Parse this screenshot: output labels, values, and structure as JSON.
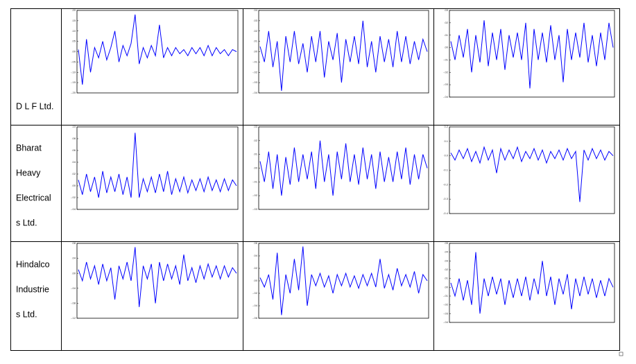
{
  "table": {
    "rows": [
      {
        "label_lines": [
          "D L F Ltd."
        ],
        "charts": [
          {
            "type": "line",
            "color": "#0000ff",
            "ylim": [
              -0.2,
              0.2
            ],
            "yticks": [
              {
                "value": 0.2,
                "label": ".20"
              },
              {
                "value": 0.15,
                "label": ".15"
              },
              {
                "value": 0.1,
                "label": ".10"
              },
              {
                "value": 0.05,
                "label": ".05"
              },
              {
                "value": 0,
                "label": ".00"
              },
              {
                "value": -0.05,
                "label": "-.05"
              },
              {
                "value": -0.1,
                "label": "-.10"
              },
              {
                "value": -0.15,
                "label": "-.15"
              },
              {
                "value": -0.2,
                "label": "-.20"
              }
            ],
            "values": [
              0.01,
              -0.16,
              0.06,
              -0.1,
              0.02,
              -0.03,
              0.05,
              -0.04,
              0.02,
              0.1,
              -0.05,
              0.03,
              -0.02,
              0.04,
              0.18,
              -0.06,
              0.02,
              -0.03,
              0.03,
              -0.02,
              0.13,
              -0.03,
              0.02,
              -0.02,
              0.02,
              -0.01,
              0.01,
              -0.02,
              0.02,
              -0.01,
              0.02,
              -0.02,
              0.03,
              -0.02,
              0.02,
              -0.01,
              0.01,
              -0.02,
              0.01,
              0.0
            ]
          },
          {
            "type": "line",
            "color": "#0000ff",
            "ylim": [
              -0.04,
              0.04
            ],
            "yticks": [
              {
                "value": 0.04,
                "label": ".04"
              },
              {
                "value": 0.03,
                "label": ".03"
              },
              {
                "value": 0.02,
                "label": ".02"
              },
              {
                "value": 0.01,
                "label": ".01"
              },
              {
                "value": 0,
                "label": ".00"
              },
              {
                "value": -0.01,
                "label": "-.01"
              },
              {
                "value": -0.02,
                "label": "-.02"
              },
              {
                "value": -0.03,
                "label": "-.03"
              },
              {
                "value": -0.04,
                "label": "-.04"
              }
            ],
            "values": [
              0.005,
              -0.01,
              0.02,
              -0.015,
              0.01,
              -0.038,
              0.015,
              -0.01,
              0.02,
              -0.012,
              0.008,
              -0.02,
              0.015,
              -0.01,
              0.02,
              -0.025,
              0.01,
              -0.008,
              0.018,
              -0.03,
              0.012,
              -0.01,
              0.015,
              -0.012,
              0.03,
              -0.015,
              0.01,
              -0.02,
              0.015,
              -0.01,
              0.012,
              -0.015,
              0.02,
              -0.01,
              0.015,
              -0.012,
              0.01,
              -0.008,
              0.012,
              0.0
            ]
          },
          {
            "type": "line",
            "color": "#0000ff",
            "ylim": [
              -0.04,
              0.03
            ],
            "yticks": [
              {
                "value": 0.03,
                "label": ".03"
              },
              {
                "value": 0.02,
                "label": ".02"
              },
              {
                "value": 0.01,
                "label": ".01"
              },
              {
                "value": 0,
                "label": ".00"
              },
              {
                "value": -0.01,
                "label": "-.01"
              },
              {
                "value": -0.02,
                "label": "-.02"
              },
              {
                "value": -0.03,
                "label": "-.03"
              },
              {
                "value": -0.04,
                "label": "-.04"
              }
            ],
            "values": [
              0.005,
              -0.01,
              0.01,
              -0.008,
              0.015,
              -0.02,
              0.01,
              -0.012,
              0.022,
              -0.015,
              0.012,
              -0.01,
              0.015,
              -0.018,
              0.01,
              -0.008,
              0.012,
              -0.01,
              0.02,
              -0.033,
              0.015,
              -0.01,
              0.012,
              -0.012,
              0.018,
              -0.01,
              0.01,
              -0.028,
              0.015,
              -0.01,
              0.012,
              -0.008,
              0.02,
              -0.012,
              0.01,
              -0.015,
              0.012,
              -0.01,
              0.02,
              0.0
            ]
          }
        ]
      },
      {
        "label_lines": [
          "Bharat",
          "Heavy",
          "Electrical",
          "s Ltd."
        ],
        "charts": [
          {
            "type": "line",
            "color": "#0000ff",
            "ylim": [
              -0.04,
              0.1
            ],
            "yticks": [
              {
                "value": 0.1,
                "label": ".10"
              },
              {
                "value": 0.08,
                "label": ".08"
              },
              {
                "value": 0.06,
                "label": ".06"
              },
              {
                "value": 0.04,
                "label": ".04"
              },
              {
                "value": 0.02,
                "label": ".02"
              },
              {
                "value": 0,
                "label": ".00"
              },
              {
                "value": -0.02,
                "label": "-.02"
              },
              {
                "value": -0.04,
                "label": "-.04"
              }
            ],
            "values": [
              0.01,
              -0.015,
              0.02,
              -0.01,
              0.015,
              -0.02,
              0.025,
              -0.012,
              0.015,
              -0.01,
              0.02,
              -0.015,
              0.015,
              -0.02,
              0.09,
              -0.02,
              0.012,
              -0.01,
              0.015,
              -0.012,
              0.02,
              -0.01,
              0.025,
              -0.015,
              0.012,
              -0.01,
              0.015,
              -0.012,
              0.01,
              -0.008,
              0.012,
              -0.01,
              0.015,
              -0.008,
              0.01,
              -0.01,
              0.012,
              -0.008,
              0.01,
              0.0
            ]
          },
          {
            "type": "line",
            "color": "#0000ff",
            "ylim": [
              -0.03,
              0.03
            ],
            "yticks": [
              {
                "value": 0.03,
                "label": ".03"
              },
              {
                "value": 0.02,
                "label": ".02"
              },
              {
                "value": 0.01,
                "label": ".01"
              },
              {
                "value": 0,
                "label": ".00"
              },
              {
                "value": -0.01,
                "label": "-.01"
              },
              {
                "value": -0.02,
                "label": "-.02"
              },
              {
                "value": -0.03,
                "label": "-.03"
              }
            ],
            "values": [
              0.005,
              -0.01,
              0.012,
              -0.015,
              0.01,
              -0.02,
              0.008,
              -0.012,
              0.015,
              -0.01,
              0.01,
              -0.008,
              0.012,
              -0.015,
              0.02,
              -0.01,
              0.01,
              -0.02,
              0.012,
              -0.008,
              0.018,
              -0.01,
              0.01,
              -0.012,
              0.015,
              -0.008,
              0.01,
              -0.015,
              0.012,
              -0.01,
              0.008,
              -0.01,
              0.012,
              -0.008,
              0.015,
              -0.012,
              0.01,
              -0.008,
              0.01,
              0.0
            ]
          },
          {
            "type": "line",
            "color": "#0000ff",
            "ylim": [
              -0.4,
              0.2
            ],
            "yticks": [
              0.2,
              0.1,
              {
                "value": 0,
                "label": "0.0"
              },
              -0.1,
              -0.2,
              -0.3,
              -0.4
            ],
            "values": [
              0.02,
              -0.03,
              0.04,
              -0.02,
              0.05,
              -0.04,
              0.03,
              -0.05,
              0.06,
              -0.03,
              0.04,
              -0.12,
              0.05,
              -0.03,
              0.04,
              -0.02,
              0.06,
              -0.04,
              0.03,
              -0.02,
              0.05,
              -0.03,
              0.04,
              -0.05,
              0.03,
              -0.02,
              0.04,
              -0.03,
              0.05,
              -0.02,
              0.03,
              -0.32,
              0.04,
              -0.03,
              0.05,
              -0.02,
              0.04,
              -0.03,
              0.03,
              0.0
            ]
          }
        ]
      },
      {
        "label_lines": [
          "Hindalco",
          "Industrie",
          "s Ltd."
        ],
        "charts": [
          {
            "type": "line",
            "color": "#0000ff",
            "ylim": [
              -0.12,
              0.08
            ],
            "yticks": [
              {
                "value": 0.08,
                "label": ".08"
              },
              {
                "value": 0.04,
                "label": ".04"
              },
              {
                "value": 0,
                "label": ".00"
              },
              {
                "value": -0.04,
                "label": "-.04"
              },
              {
                "value": -0.08,
                "label": "-.08"
              },
              {
                "value": -0.12,
                "label": "-.12"
              }
            ],
            "values": [
              0.01,
              -0.02,
              0.03,
              -0.015,
              0.02,
              -0.03,
              0.025,
              -0.02,
              0.015,
              -0.07,
              0.02,
              -0.015,
              0.03,
              -0.02,
              0.07,
              -0.09,
              0.02,
              -0.015,
              0.025,
              -0.08,
              0.03,
              -0.02,
              0.025,
              -0.015,
              0.02,
              -0.03,
              0.05,
              -0.02,
              0.015,
              -0.025,
              0.02,
              -0.015,
              0.025,
              -0.01,
              0.02,
              -0.015,
              0.02,
              -0.01,
              0.015,
              0.0
            ]
          },
          {
            "type": "line",
            "color": "#0000ff",
            "ylim": [
              -0.06,
              0.06
            ],
            "yticks": [
              {
                "value": 0.06,
                "label": ".06"
              },
              {
                "value": 0.04,
                "label": ".04"
              },
              {
                "value": 0.02,
                "label": ".02"
              },
              {
                "value": 0,
                "label": ".00"
              },
              {
                "value": -0.02,
                "label": "-.02"
              },
              {
                "value": -0.04,
                "label": "-.04"
              },
              {
                "value": -0.06,
                "label": "-.06"
              }
            ],
            "values": [
              0.005,
              -0.01,
              0.01,
              -0.03,
              0.045,
              -0.055,
              0.01,
              -0.02,
              0.035,
              -0.015,
              0.055,
              -0.04,
              0.01,
              -0.008,
              0.012,
              -0.01,
              0.008,
              -0.02,
              0.01,
              -0.008,
              0.012,
              -0.01,
              0.008,
              -0.012,
              0.01,
              -0.008,
              0.012,
              -0.01,
              0.035,
              -0.012,
              0.01,
              -0.015,
              0.02,
              -0.008,
              0.01,
              -0.01,
              0.015,
              -0.02,
              0.01,
              0.0
            ]
          },
          {
            "type": "line",
            "color": "#0000ff",
            "ylim": [
              -0.04,
              0.05
            ],
            "yticks": [
              {
                "value": 0.05,
                "label": ".05"
              },
              {
                "value": 0.04,
                "label": ".04"
              },
              {
                "value": 0.03,
                "label": ".03"
              },
              {
                "value": 0.02,
                "label": ".02"
              },
              {
                "value": 0.01,
                "label": ".01"
              },
              {
                "value": 0,
                "label": ".00"
              },
              {
                "value": -0.01,
                "label": "-.01"
              },
              {
                "value": -0.02,
                "label": "-.02"
              },
              {
                "value": -0.03,
                "label": "-.03"
              },
              {
                "value": -0.04,
                "label": "-.04"
              }
            ],
            "values": [
              0.005,
              -0.01,
              0.01,
              -0.015,
              0.008,
              -0.02,
              0.04,
              -0.03,
              0.01,
              -0.01,
              0.012,
              -0.008,
              0.01,
              -0.02,
              0.008,
              -0.012,
              0.01,
              -0.01,
              0.012,
              -0.015,
              0.01,
              -0.008,
              0.03,
              -0.01,
              0.012,
              -0.02,
              0.01,
              -0.008,
              0.015,
              -0.025,
              0.01,
              -0.01,
              0.012,
              -0.008,
              0.01,
              -0.012,
              0.008,
              -0.01,
              0.01,
              0.0
            ]
          }
        ]
      }
    ]
  }
}
